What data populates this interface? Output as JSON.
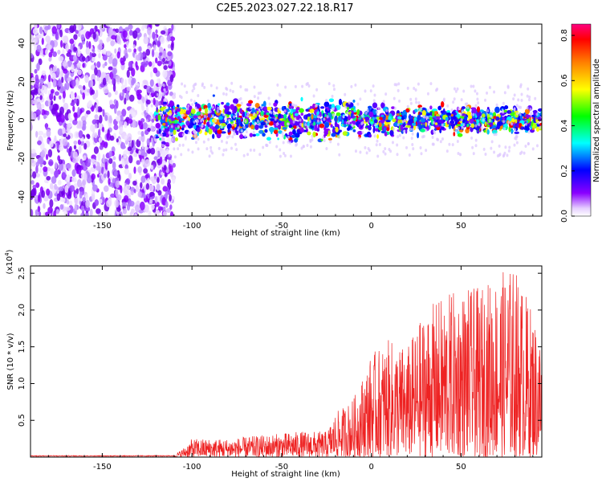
{
  "title": "C2E5.2023.027.22.18.R17",
  "chart_data": [
    {
      "type": "heatmap",
      "description_of_values": "spectral amplitude vs height",
      "xlabel": "Height of straight line (km)",
      "ylabel": "Frequency (Hz)",
      "xlim": [
        -190,
        95
      ],
      "ylim": [
        -50,
        50
      ],
      "xticks": [
        -150,
        -100,
        -50,
        0,
        50
      ],
      "yticks": [
        -40,
        -20,
        0,
        20,
        40
      ],
      "noise_region_x": [
        -190,
        -110
      ],
      "signal_band_start_x": -120,
      "signal_band_center_hz": 0,
      "signal_band_halfwidth_hz": 8,
      "grid": false,
      "colorbar": {
        "label": "Normalized spectral amplitude",
        "range": [
          0.0,
          0.85
        ],
        "ticks": [
          0.0,
          0.2,
          0.4,
          0.6,
          0.8
        ],
        "colors": [
          "#ffffff",
          "#e6d0ff",
          "#8a00ff",
          "#0000ff",
          "#00ffff",
          "#00ff00",
          "#ffff00",
          "#ff8000",
          "#ff0000",
          "#ff0080"
        ]
      }
    },
    {
      "type": "line",
      "xlabel": "Height of straight line (km)",
      "ylabel": "SNR (10 * v/v)",
      "y_scale_label": "(x10",
      "y_scale_exponent": "4",
      "xlim": [
        -190,
        95
      ],
      "ylim": [
        0,
        2.6
      ],
      "xticks": [
        -150,
        -100,
        -50,
        0,
        50
      ],
      "yticks": [
        0.5,
        1.0,
        1.5,
        2.0,
        2.5
      ],
      "ytick_labels": [
        "0.5",
        "1.0",
        "1.5",
        "2.0",
        "2.5"
      ],
      "grid": false,
      "series": [
        {
          "color": "#ee2222",
          "envelope_x": [
            -190,
            -110,
            -105,
            -100,
            -80,
            -60,
            -40,
            -25,
            -20,
            -10,
            0,
            10,
            20,
            30,
            40,
            50,
            60,
            70,
            80,
            90,
            95
          ],
          "envelope_max": [
            0.02,
            0.03,
            0.12,
            0.25,
            0.25,
            0.3,
            0.35,
            0.35,
            0.6,
            0.8,
            1.4,
            1.6,
            1.5,
            2.0,
            2.2,
            2.3,
            2.3,
            2.5,
            2.6,
            2.0,
            1.6
          ]
        }
      ]
    }
  ]
}
